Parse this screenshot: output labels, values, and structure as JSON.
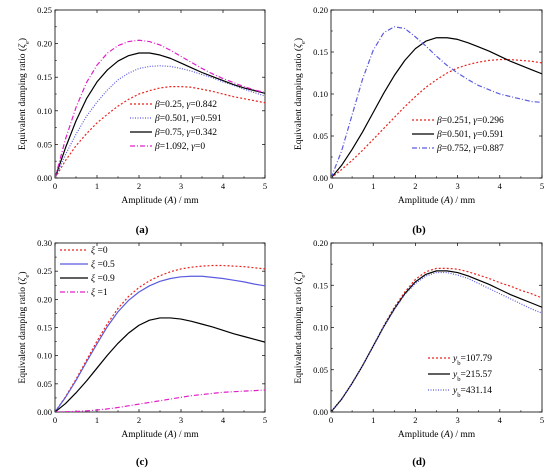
{
  "chart_data": [
    {
      "type": "line",
      "panel_label": "(a)",
      "xlabel": "Amplitude (A) / mm",
      "ylabel": "Equivalent damping ratio (ζe)",
      "xlim": [
        0,
        5
      ],
      "ylim": [
        0,
        0.25
      ],
      "xticks": [
        "0",
        "1",
        "2",
        "3",
        "4",
        "5"
      ],
      "yticks": [
        "0.00",
        "0.05",
        "0.10",
        "0.15",
        "0.20",
        "0.25"
      ],
      "legend_position": "bottom-right",
      "series": [
        {
          "name": "β=0.25, γ=0.842",
          "color": "#e8251f",
          "dash": "2,2",
          "x": [
            0,
            0.25,
            0.5,
            0.75,
            1,
            1.25,
            1.5,
            1.75,
            2,
            2.25,
            2.5,
            2.75,
            3,
            3.25,
            3.5,
            3.75,
            4,
            4.25,
            4.5,
            4.75,
            5
          ],
          "y": [
            0,
            0.026,
            0.048,
            0.066,
            0.082,
            0.095,
            0.107,
            0.117,
            0.125,
            0.13,
            0.134,
            0.136,
            0.136,
            0.135,
            0.132,
            0.129,
            0.125,
            0.121,
            0.118,
            0.115,
            0.112
          ]
        },
        {
          "name": "β=0.501, γ=0.591",
          "color": "#5b5be0",
          "dash": "1,1.5",
          "x": [
            0,
            0.25,
            0.5,
            0.75,
            1,
            1.25,
            1.5,
            1.75,
            2,
            2.25,
            2.5,
            2.75,
            3,
            3.25,
            3.5,
            3.75,
            4,
            4.25,
            4.5,
            4.75,
            5
          ],
          "y": [
            0,
            0.035,
            0.065,
            0.092,
            0.113,
            0.131,
            0.146,
            0.156,
            0.163,
            0.166,
            0.167,
            0.166,
            0.163,
            0.159,
            0.154,
            0.149,
            0.143,
            0.138,
            0.132,
            0.127,
            0.122
          ]
        },
        {
          "name": "β=0.75, γ=0.342",
          "color": "#000000",
          "dash": "",
          "x": [
            0,
            0.25,
            0.5,
            0.75,
            1,
            1.25,
            1.5,
            1.75,
            2,
            2.25,
            2.5,
            2.75,
            3,
            3.25,
            3.5,
            3.75,
            4,
            4.25,
            4.5,
            4.75,
            5
          ],
          "y": [
            0,
            0.045,
            0.085,
            0.118,
            0.143,
            0.161,
            0.174,
            0.182,
            0.186,
            0.186,
            0.183,
            0.178,
            0.171,
            0.164,
            0.157,
            0.151,
            0.145,
            0.139,
            0.134,
            0.13,
            0.126
          ]
        },
        {
          "name": "β=1.092, γ=0",
          "color": "#e020c8",
          "dash": "5,2,1,2",
          "x": [
            0,
            0.25,
            0.5,
            0.75,
            1,
            1.25,
            1.5,
            1.75,
            2,
            2.25,
            2.5,
            2.75,
            3,
            3.25,
            3.5,
            3.75,
            4,
            4.25,
            4.5,
            4.75,
            5
          ],
          "y": [
            0,
            0.058,
            0.105,
            0.142,
            0.168,
            0.186,
            0.197,
            0.203,
            0.205,
            0.203,
            0.198,
            0.19,
            0.181,
            0.172,
            0.163,
            0.155,
            0.148,
            0.142,
            0.136,
            0.131,
            0.127
          ]
        }
      ]
    },
    {
      "type": "line",
      "panel_label": "(b)",
      "xlabel": "Amplitude (A) / mm",
      "ylabel": "Equivalent damping ratio (ζe)",
      "xlim": [
        0,
        5
      ],
      "ylim": [
        0,
        0.2
      ],
      "xticks": [
        "0",
        "1",
        "2",
        "3",
        "4",
        "5"
      ],
      "yticks": [
        "0.00",
        "0.05",
        "0.10",
        "0.15",
        "0.20"
      ],
      "legend_position": "bottom-right",
      "series": [
        {
          "name": "β=0.251, γ=0.296",
          "color": "#e8251f",
          "dash": "2,2",
          "x": [
            0,
            0.25,
            0.5,
            0.75,
            1,
            1.25,
            1.5,
            1.75,
            2,
            2.25,
            2.5,
            2.75,
            3,
            3.25,
            3.5,
            3.75,
            4,
            4.25,
            4.5,
            4.75,
            5
          ],
          "y": [
            0,
            0.01,
            0.021,
            0.033,
            0.046,
            0.059,
            0.072,
            0.085,
            0.097,
            0.108,
            0.117,
            0.125,
            0.131,
            0.135,
            0.138,
            0.14,
            0.141,
            0.141,
            0.14,
            0.139,
            0.137
          ]
        },
        {
          "name": "β=0.501, γ=0.591",
          "color": "#000000",
          "dash": "",
          "x": [
            0,
            0.25,
            0.5,
            0.75,
            1,
            1.25,
            1.5,
            1.75,
            2,
            2.25,
            2.5,
            2.75,
            3,
            3.25,
            3.5,
            3.75,
            4,
            4.25,
            4.5,
            4.75,
            5
          ],
          "y": [
            0,
            0.015,
            0.034,
            0.055,
            0.078,
            0.101,
            0.122,
            0.14,
            0.154,
            0.163,
            0.167,
            0.167,
            0.165,
            0.161,
            0.156,
            0.151,
            0.145,
            0.139,
            0.134,
            0.129,
            0.124
          ]
        },
        {
          "name": "β=0.752, γ=0.887",
          "color": "#5b5be0",
          "dash": "5,2,1,2",
          "x": [
            0,
            0.25,
            0.5,
            0.75,
            1,
            1.25,
            1.5,
            1.75,
            2,
            2.25,
            2.5,
            2.75,
            3,
            3.25,
            3.5,
            3.75,
            4,
            4.25,
            4.5,
            4.75,
            5
          ],
          "y": [
            0,
            0.032,
            0.075,
            0.118,
            0.152,
            0.173,
            0.18,
            0.178,
            0.168,
            0.157,
            0.145,
            0.134,
            0.125,
            0.117,
            0.11,
            0.105,
            0.1,
            0.097,
            0.094,
            0.091,
            0.09
          ]
        }
      ]
    },
    {
      "type": "line",
      "panel_label": "(c)",
      "xlabel": "Amplitude (A) / mm",
      "ylabel": "Equivalent damping ratio (ζe)",
      "xlim": [
        0,
        5
      ],
      "ylim": [
        0,
        0.3
      ],
      "xticks": [
        "0",
        "1",
        "2",
        "3",
        "4",
        "5"
      ],
      "yticks": [
        "0.00",
        "0.05",
        "0.10",
        "0.15",
        "0.20",
        "0.25",
        "0.30"
      ],
      "legend_position": "top-left",
      "series": [
        {
          "name": "ξ =0",
          "color": "#e8251f",
          "dash": "2,2",
          "x": [
            0,
            0.25,
            0.5,
            0.75,
            1,
            1.25,
            1.5,
            1.75,
            2,
            2.25,
            2.5,
            2.75,
            3,
            3.25,
            3.5,
            3.75,
            4,
            4.25,
            4.5,
            4.75,
            5
          ],
          "y": [
            0,
            0.027,
            0.058,
            0.092,
            0.126,
            0.157,
            0.184,
            0.205,
            0.221,
            0.233,
            0.242,
            0.249,
            0.254,
            0.257,
            0.259,
            0.26,
            0.26,
            0.259,
            0.258,
            0.256,
            0.254
          ]
        },
        {
          "name": "ξ =0.5",
          "color": "#5b5be0",
          "dash": "",
          "x": [
            0,
            0.25,
            0.5,
            0.75,
            1,
            1.25,
            1.5,
            1.75,
            2,
            2.25,
            2.5,
            2.75,
            3,
            3.25,
            3.5,
            3.75,
            4,
            4.25,
            4.5,
            4.75,
            5
          ],
          "y": [
            0,
            0.026,
            0.056,
            0.089,
            0.121,
            0.152,
            0.178,
            0.198,
            0.213,
            0.224,
            0.232,
            0.237,
            0.24,
            0.241,
            0.241,
            0.239,
            0.237,
            0.234,
            0.231,
            0.227,
            0.224
          ]
        },
        {
          "name": "ξ =0.9",
          "color": "#000000",
          "dash": "",
          "x": [
            0,
            0.25,
            0.5,
            0.75,
            1,
            1.25,
            1.5,
            1.75,
            2,
            2.25,
            2.5,
            2.75,
            3,
            3.25,
            3.5,
            3.75,
            4,
            4.25,
            4.5,
            4.75,
            5
          ],
          "y": [
            0,
            0.015,
            0.034,
            0.055,
            0.078,
            0.101,
            0.122,
            0.14,
            0.154,
            0.163,
            0.167,
            0.167,
            0.165,
            0.161,
            0.156,
            0.151,
            0.145,
            0.139,
            0.134,
            0.129,
            0.124
          ]
        },
        {
          "name": "ξ =1",
          "color": "#e020c8",
          "dash": "5,2,1,2",
          "x": [
            0,
            0.25,
            0.5,
            0.75,
            1,
            1.25,
            1.5,
            1.75,
            2,
            2.25,
            2.5,
            2.75,
            3,
            3.25,
            3.5,
            3.75,
            4,
            4.25,
            4.5,
            4.75,
            5
          ],
          "y": [
            0,
            0.0005,
            0.001,
            0.002,
            0.0035,
            0.0055,
            0.008,
            0.011,
            0.014,
            0.017,
            0.02,
            0.023,
            0.026,
            0.029,
            0.031,
            0.033,
            0.035,
            0.036,
            0.037,
            0.038,
            0.039
          ]
        }
      ]
    },
    {
      "type": "line",
      "panel_label": "(d)",
      "xlabel": "Amplitude (A) / mm",
      "ylabel": "Equivalent damping ratio (ζe)",
      "xlim": [
        0,
        5
      ],
      "ylim": [
        0,
        0.2
      ],
      "xticks": [
        "0",
        "1",
        "2",
        "3",
        "4",
        "5"
      ],
      "yticks": [
        "0.00",
        "0.05",
        "0.10",
        "0.15",
        "0.20"
      ],
      "legend_position": "bottom-right",
      "series": [
        {
          "name": "yb=107.79",
          "color": "#e8251f",
          "dash": "2,2",
          "x": [
            0,
            0.25,
            0.5,
            0.75,
            1,
            1.25,
            1.5,
            1.75,
            2,
            2.25,
            2.5,
            2.75,
            3,
            3.25,
            3.5,
            3.75,
            4,
            4.25,
            4.5,
            4.75,
            5
          ],
          "y": [
            0,
            0.015,
            0.034,
            0.055,
            0.078,
            0.102,
            0.124,
            0.142,
            0.157,
            0.166,
            0.17,
            0.17,
            0.169,
            0.166,
            0.162,
            0.158,
            0.153,
            0.149,
            0.144,
            0.14,
            0.135
          ]
        },
        {
          "name": "yb=215.57",
          "color": "#000000",
          "dash": "",
          "x": [
            0,
            0.25,
            0.5,
            0.75,
            1,
            1.25,
            1.5,
            1.75,
            2,
            2.25,
            2.5,
            2.75,
            3,
            3.25,
            3.5,
            3.75,
            4,
            4.25,
            4.5,
            4.75,
            5
          ],
          "y": [
            0,
            0.015,
            0.034,
            0.055,
            0.078,
            0.101,
            0.122,
            0.14,
            0.154,
            0.163,
            0.167,
            0.167,
            0.165,
            0.161,
            0.156,
            0.151,
            0.145,
            0.139,
            0.134,
            0.129,
            0.124
          ]
        },
        {
          "name": "yb=431.14",
          "color": "#5b5be0",
          "dash": "1,1.5",
          "x": [
            0,
            0.25,
            0.5,
            0.75,
            1,
            1.25,
            1.5,
            1.75,
            2,
            2.25,
            2.5,
            2.75,
            3,
            3.25,
            3.5,
            3.75,
            4,
            4.25,
            4.5,
            4.75,
            5
          ],
          "y": [
            0,
            0.015,
            0.034,
            0.055,
            0.078,
            0.101,
            0.121,
            0.139,
            0.152,
            0.161,
            0.165,
            0.165,
            0.162,
            0.158,
            0.152,
            0.146,
            0.14,
            0.134,
            0.128,
            0.122,
            0.117
          ]
        }
      ]
    }
  ]
}
